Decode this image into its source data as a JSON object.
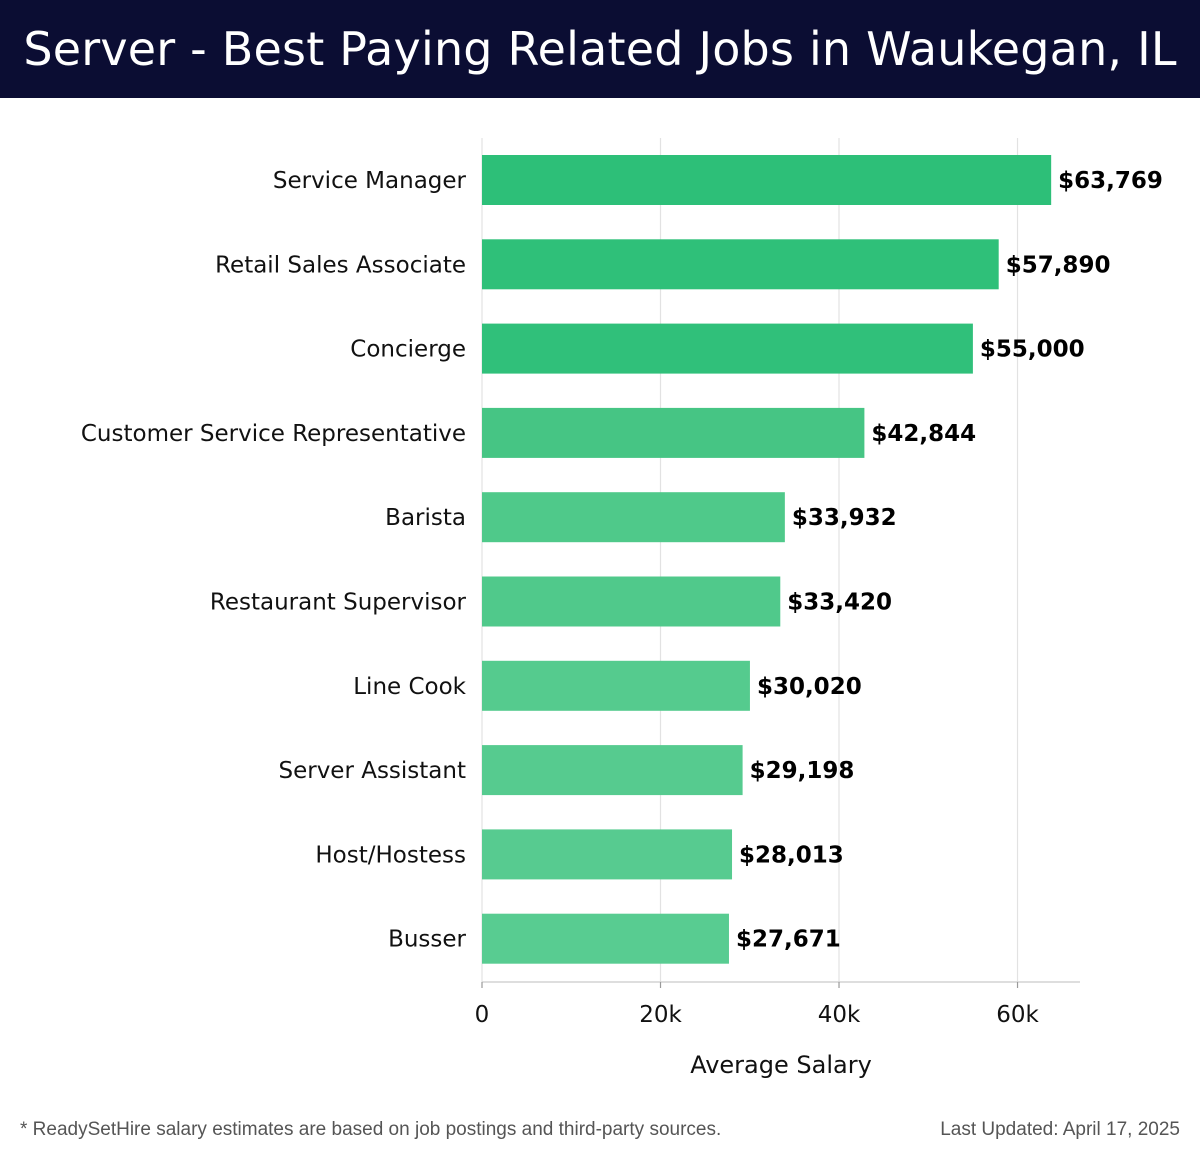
{
  "header": {
    "title": "Server - Best Paying Related Jobs in Waukegan, IL"
  },
  "chart_data": {
    "type": "bar",
    "orientation": "horizontal",
    "categories": [
      "Service Manager",
      "Retail Sales Associate",
      "Concierge",
      "Customer Service Representative",
      "Barista",
      "Restaurant Supervisor",
      "Line Cook",
      "Server Assistant",
      "Host/Hostess",
      "Busser"
    ],
    "values": [
      63769,
      57890,
      55000,
      42844,
      33932,
      33420,
      30020,
      29198,
      28013,
      27671
    ],
    "value_labels": [
      "$63,769",
      "$57,890",
      "$55,000",
      "$42,844",
      "$33,932",
      "$33,420",
      "$30,020",
      "$29,198",
      "$28,013",
      "$27,671"
    ],
    "xlabel": "Average Salary",
    "ylabel": "",
    "xlim": [
      0,
      67000
    ],
    "x_ticks": [
      0,
      20000,
      40000,
      60000
    ],
    "x_tick_labels": [
      "0",
      "20k",
      "40k",
      "60k"
    ],
    "grid": "vertical",
    "bar_colors": [
      "#2dbf78",
      "#2fc079",
      "#30c07a",
      "#46c584",
      "#4fc98a",
      "#50c98b",
      "#55cb8e",
      "#56cb8f",
      "#57cb90",
      "#58cc91"
    ]
  },
  "footer": {
    "note": "* ReadySetHire salary estimates are based on job postings and third-party sources.",
    "updated": "Last Updated: April 17, 2025"
  }
}
